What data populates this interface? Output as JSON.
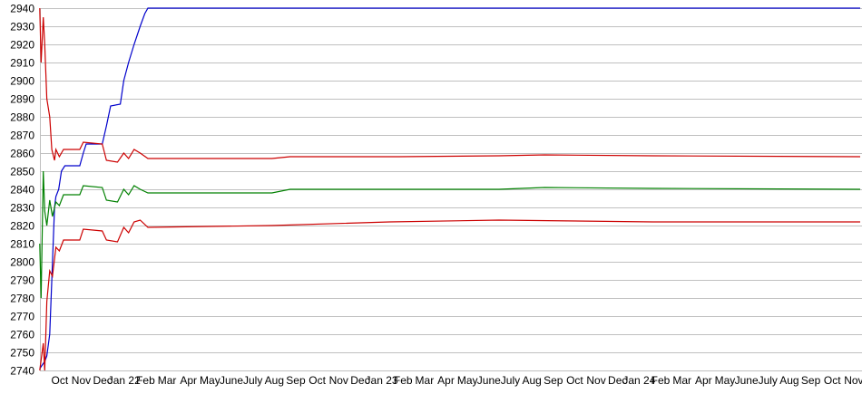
{
  "chart_data": {
    "type": "line",
    "title": "",
    "xlabel": "",
    "ylabel": "",
    "ylim": [
      2740,
      2940
    ],
    "yticks": [
      2740,
      2750,
      2760,
      2770,
      2780,
      2790,
      2800,
      2810,
      2820,
      2830,
      2840,
      2850,
      2860,
      2870,
      2880,
      2890,
      2900,
      2910,
      2920,
      2930,
      2940
    ],
    "xlim": [
      "2021-09-18",
      "2024-11-25"
    ],
    "xtick_labels": [
      {
        "date": "2021-10",
        "label": "Oct"
      },
      {
        "date": "2021-11",
        "label": "Nov"
      },
      {
        "date": "2021-12",
        "label": "Dec"
      },
      {
        "date": "2022-01",
        "label": "Jan 22"
      },
      {
        "date": "2022-02",
        "label": "Feb"
      },
      {
        "date": "2022-03",
        "label": "Mar"
      },
      {
        "date": "2022-04",
        "label": "Apr"
      },
      {
        "date": "2022-05",
        "label": "May"
      },
      {
        "date": "2022-06",
        "label": "June"
      },
      {
        "date": "2022-07",
        "label": "July"
      },
      {
        "date": "2022-08",
        "label": "Aug"
      },
      {
        "date": "2022-09",
        "label": "Sep"
      },
      {
        "date": "2022-10",
        "label": "Oct"
      },
      {
        "date": "2022-11",
        "label": "Nov"
      },
      {
        "date": "2022-12",
        "label": "Dec"
      },
      {
        "date": "2023-01",
        "label": "Jan 23"
      },
      {
        "date": "2023-02",
        "label": "Feb"
      },
      {
        "date": "2023-03",
        "label": "Mar"
      },
      {
        "date": "2023-04",
        "label": "Apr"
      },
      {
        "date": "2023-05",
        "label": "May"
      },
      {
        "date": "2023-06",
        "label": "June"
      },
      {
        "date": "2023-07",
        "label": "July"
      },
      {
        "date": "2023-08",
        "label": "Aug"
      },
      {
        "date": "2023-09",
        "label": "Sep"
      },
      {
        "date": "2023-10",
        "label": "Oct"
      },
      {
        "date": "2023-11",
        "label": "Nov"
      },
      {
        "date": "2023-12",
        "label": "Dec"
      },
      {
        "date": "2024-01",
        "label": "Jan 24"
      },
      {
        "date": "2024-02",
        "label": "Feb"
      },
      {
        "date": "2024-03",
        "label": "Mar"
      },
      {
        "date": "2024-04",
        "label": "Apr"
      },
      {
        "date": "2024-05",
        "label": "May"
      },
      {
        "date": "2024-06",
        "label": "June"
      },
      {
        "date": "2024-07",
        "label": "July"
      },
      {
        "date": "2024-08",
        "label": "Aug"
      },
      {
        "date": "2024-09",
        "label": "Sep"
      },
      {
        "date": "2024-10",
        "label": "Oct"
      },
      {
        "date": "2024-11",
        "label": "Nov"
      }
    ],
    "grid": true,
    "legend": "none",
    "series": [
      {
        "color": "#0000cc",
        "points": [
          [
            "2021-09-18",
            2741
          ],
          [
            "2021-09-25",
            2745
          ],
          [
            "2021-09-28",
            2748
          ],
          [
            "2021-10-02",
            2760
          ],
          [
            "2021-10-05",
            2790
          ],
          [
            "2021-10-09",
            2830
          ],
          [
            "2021-10-11",
            2836
          ],
          [
            "2021-10-15",
            2840
          ],
          [
            "2021-10-19",
            2850
          ],
          [
            "2021-10-24",
            2853
          ],
          [
            "2021-11-14",
            2853
          ],
          [
            "2021-11-19",
            2860
          ],
          [
            "2021-11-23",
            2865
          ],
          [
            "2021-12-16",
            2865
          ],
          [
            "2021-12-22",
            2875
          ],
          [
            "2021-12-28",
            2886
          ],
          [
            "2022-01-11",
            2887
          ],
          [
            "2022-01-16",
            2900
          ],
          [
            "2022-01-23",
            2910
          ],
          [
            "2022-01-31",
            2920
          ],
          [
            "2022-02-08",
            2930
          ],
          [
            "2022-02-14",
            2937
          ],
          [
            "2022-02-18",
            2940
          ],
          [
            "2024-11-25",
            2940
          ]
        ]
      },
      {
        "color": "#cc0000",
        "points": [
          [
            "2021-09-18",
            2940
          ],
          [
            "2021-09-20",
            2910
          ],
          [
            "2021-09-23",
            2935
          ],
          [
            "2021-09-25",
            2920
          ],
          [
            "2021-09-28",
            2890
          ],
          [
            "2021-10-02",
            2880
          ],
          [
            "2021-10-05",
            2862
          ],
          [
            "2021-10-09",
            2856
          ],
          [
            "2021-10-11",
            2862
          ],
          [
            "2021-10-16",
            2858
          ],
          [
            "2021-10-22",
            2862
          ],
          [
            "2021-11-14",
            2862
          ],
          [
            "2021-11-19",
            2866
          ],
          [
            "2021-12-16",
            2865
          ],
          [
            "2021-12-22",
            2856
          ],
          [
            "2022-01-07",
            2855
          ],
          [
            "2022-01-16",
            2860
          ],
          [
            "2022-01-23",
            2857
          ],
          [
            "2022-01-31",
            2862
          ],
          [
            "2022-02-08",
            2860
          ],
          [
            "2022-02-18",
            2857
          ],
          [
            "2022-08-13",
            2857
          ],
          [
            "2022-09-08",
            2858
          ],
          [
            "2023-02-10",
            2858
          ],
          [
            "2023-06-30",
            2858.5
          ],
          [
            "2023-09-04",
            2859
          ],
          [
            "2024-02-05",
            2858.5
          ],
          [
            "2024-11-25",
            2858
          ]
        ]
      },
      {
        "color": "#008000",
        "points": [
          [
            "2021-09-18",
            2810
          ],
          [
            "2021-09-20",
            2780
          ],
          [
            "2021-09-23",
            2850
          ],
          [
            "2021-09-25",
            2828
          ],
          [
            "2021-09-28",
            2820
          ],
          [
            "2021-10-02",
            2834
          ],
          [
            "2021-10-06",
            2825
          ],
          [
            "2021-10-11",
            2833
          ],
          [
            "2021-10-16",
            2831
          ],
          [
            "2021-10-22",
            2837
          ],
          [
            "2021-11-14",
            2837
          ],
          [
            "2021-11-19",
            2842
          ],
          [
            "2021-12-16",
            2841
          ],
          [
            "2021-12-22",
            2834
          ],
          [
            "2022-01-07",
            2833
          ],
          [
            "2022-01-16",
            2840
          ],
          [
            "2022-01-23",
            2837
          ],
          [
            "2022-01-31",
            2842
          ],
          [
            "2022-02-08",
            2840
          ],
          [
            "2022-02-18",
            2838
          ],
          [
            "2022-08-13",
            2838
          ],
          [
            "2022-09-08",
            2840
          ],
          [
            "2023-06-30",
            2840
          ],
          [
            "2023-09-04",
            2841
          ],
          [
            "2024-02-05",
            2840.5
          ],
          [
            "2024-11-25",
            2840
          ]
        ]
      },
      {
        "color": "#cc0000",
        "points": [
          [
            "2021-09-18",
            2740
          ],
          [
            "2021-09-23",
            2755
          ],
          [
            "2021-09-25",
            2740
          ],
          [
            "2021-09-28",
            2778
          ],
          [
            "2021-10-02",
            2795
          ],
          [
            "2021-10-06",
            2792
          ],
          [
            "2021-10-11",
            2808
          ],
          [
            "2021-10-16",
            2806
          ],
          [
            "2021-10-22",
            2812
          ],
          [
            "2021-11-14",
            2812
          ],
          [
            "2021-11-19",
            2818
          ],
          [
            "2021-12-16",
            2817
          ],
          [
            "2021-12-22",
            2812
          ],
          [
            "2022-01-07",
            2811
          ],
          [
            "2022-01-16",
            2819
          ],
          [
            "2022-01-23",
            2816
          ],
          [
            "2022-01-31",
            2822
          ],
          [
            "2022-02-08",
            2823
          ],
          [
            "2022-02-18",
            2819
          ],
          [
            "2022-08-13",
            2820
          ],
          [
            "2023-01-28",
            2822
          ],
          [
            "2023-06-30",
            2823
          ],
          [
            "2024-02-05",
            2822
          ],
          [
            "2024-11-25",
            2822
          ]
        ]
      }
    ]
  }
}
